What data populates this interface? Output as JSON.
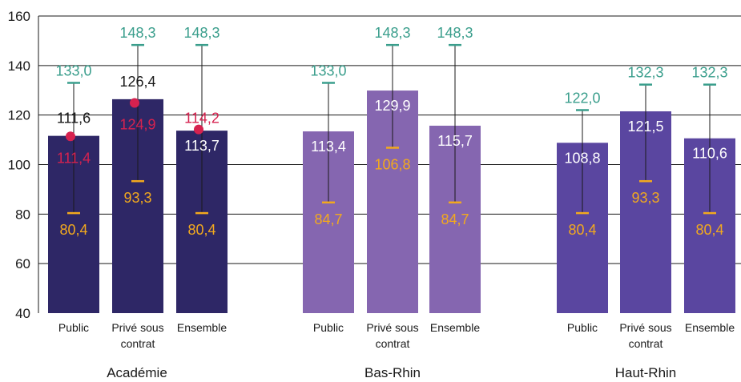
{
  "chart_data": {
    "type": "bar",
    "title": "",
    "xlabel": "",
    "ylabel": "",
    "ylim": [
      40,
      160
    ],
    "yticks": [
      40,
      60,
      80,
      100,
      120,
      140,
      160
    ],
    "grid": true,
    "legend": "none",
    "colors": {
      "max": "#3a9e8c",
      "min": "#f2a91e",
      "previous": "#d6224f",
      "bar_label_dark": "#1a1a1a",
      "bar_label_light": "#ffffff",
      "whisker": "#1a1a1a"
    },
    "groups": [
      {
        "name": "Académie",
        "color": "#2e2766",
        "bars": [
          {
            "category": "Public",
            "category_lines": [
              "Public"
            ],
            "value": 111.6,
            "value_text": "111,6",
            "max": 133.0,
            "max_text": "133,0",
            "min": 80.4,
            "min_text": "80,4",
            "previous": 111.4,
            "previous_text": "111,4",
            "label_color": "#1a1a1a"
          },
          {
            "category": "Privé sous contrat",
            "category_lines": [
              "Privé sous",
              "contrat"
            ],
            "value": 126.4,
            "value_text": "126,4",
            "max": 148.3,
            "max_text": "148,3",
            "min": 93.3,
            "min_text": "93,3",
            "previous": 124.9,
            "previous_text": "124,9",
            "label_color": "#1a1a1a"
          },
          {
            "category": "Ensemble",
            "category_lines": [
              "Ensemble"
            ],
            "value": 113.7,
            "value_text": "113,7",
            "max": 148.3,
            "max_text": "148,3",
            "min": 80.4,
            "min_text": "80,4",
            "previous": 114.2,
            "previous_text": "114,2",
            "label_color": "#ffffff"
          }
        ]
      },
      {
        "name": "Bas-Rhin",
        "color": "#8566b0",
        "bars": [
          {
            "category": "Public",
            "category_lines": [
              "Public"
            ],
            "value": 113.4,
            "value_text": "113,4",
            "max": 133.0,
            "max_text": "133,0",
            "min": 84.7,
            "min_text": "84,7",
            "label_color": "#ffffff"
          },
          {
            "category": "Privé sous contrat",
            "category_lines": [
              "Privé sous",
              "contrat"
            ],
            "value": 129.9,
            "value_text": "129,9",
            "max": 148.3,
            "max_text": "148,3",
            "min": 106.8,
            "min_text": "106,8",
            "label_color": "#ffffff"
          },
          {
            "category": "Ensemble",
            "category_lines": [
              "Ensemble"
            ],
            "value": 115.7,
            "value_text": "115,7",
            "max": 148.3,
            "max_text": "148,3",
            "min": 84.7,
            "min_text": "84,7",
            "label_color": "#ffffff"
          }
        ]
      },
      {
        "name": "Haut-Rhin",
        "color": "#5a46a0",
        "bars": [
          {
            "category": "Public",
            "category_lines": [
              "Public"
            ],
            "value": 108.8,
            "value_text": "108,8",
            "max": 122.0,
            "max_text": "122,0",
            "min": 80.4,
            "min_text": "80,4",
            "label_color": "#ffffff"
          },
          {
            "category": "Privé sous contrat",
            "category_lines": [
              "Privé sous",
              "contrat"
            ],
            "value": 121.5,
            "value_text": "121,5",
            "max": 132.3,
            "max_text": "132,3",
            "min": 93.3,
            "min_text": "93,3",
            "label_color": "#ffffff"
          },
          {
            "category": "Ensemble",
            "category_lines": [
              "Ensemble"
            ],
            "value": 110.6,
            "value_text": "110,6",
            "max": 132.3,
            "max_text": "132,3",
            "min": 80.4,
            "min_text": "80,4",
            "label_color": "#ffffff"
          }
        ]
      }
    ]
  }
}
